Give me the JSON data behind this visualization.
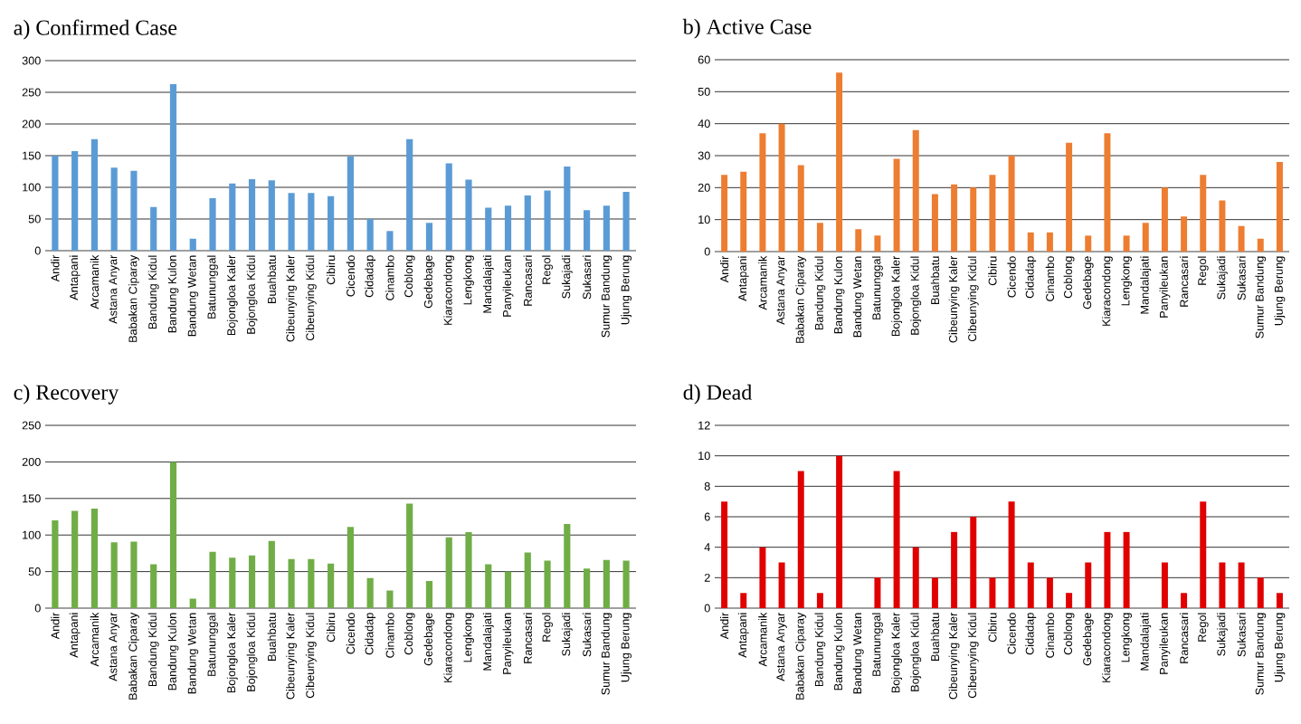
{
  "chart_data": [
    {
      "type": "bar",
      "title": "a) Confirmed Case",
      "categories": [
        "Andir",
        "Antapani",
        "Arcamanik",
        "Astana Anyar",
        "Babakan Ciparay",
        "Bandung Kidul",
        "Bandung Kulon",
        "Bandung Wetan",
        "Batununggal",
        "Bojongloa Kaler",
        "Bojongloa Kidul",
        "Buahbatu",
        "Cibeunying Kaler",
        "Cibeunying Kidul",
        "Cibiru",
        "Cicendo",
        "Cidadap",
        "Cinambo",
        "Coblong",
        "Gedebage",
        "Kiaracondong",
        "Lengkong",
        "Mandalajati",
        "Panyileukan",
        "Rancasari",
        "Regol",
        "Sukajadi",
        "Sukasari",
        "Sumur Bandung",
        "Ujung Berung"
      ],
      "values": [
        150,
        157,
        176,
        131,
        126,
        69,
        263,
        19,
        83,
        106,
        113,
        111,
        91,
        91,
        86,
        149,
        50,
        31,
        176,
        44,
        138,
        112,
        68,
        71,
        87,
        95,
        133,
        64,
        71,
        93
      ],
      "color": "#5b9bd5",
      "ylim": [
        0,
        300
      ],
      "yticks": [
        0,
        50,
        100,
        150,
        200,
        250,
        300
      ],
      "grid": "y"
    },
    {
      "type": "bar",
      "title": "b) Active Case",
      "categories": [
        "Andir",
        "Antapani",
        "Arcamanik",
        "Astana Anyar",
        "Babakan Ciparay",
        "Bandung Kidul",
        "Bandung Kulon",
        "Bandung Wetan",
        "Batununggal",
        "Bojongloa Kaler",
        "Bojongloa Kidul",
        "Buahbatu",
        "Cibeunying Kaler",
        "Cibeunying Kidul",
        "Cibiru",
        "Cicendo",
        "Cidadap",
        "Cinambo",
        "Coblong",
        "Gedebage",
        "Kiaracondong",
        "Lengkong",
        "Mandalajati",
        "Panyileukan",
        "Rancasari",
        "Regol",
        "Sukajadi",
        "Sukasari",
        "Sumur Bandung",
        "Ujung Berung"
      ],
      "values": [
        24,
        25,
        37,
        40,
        27,
        9,
        56,
        7,
        5,
        29,
        38,
        18,
        21,
        20,
        24,
        30,
        6,
        6,
        34,
        5,
        37,
        5,
        9,
        20,
        11,
        24,
        16,
        8,
        4,
        28
      ],
      "color": "#ed7d31",
      "ylim": [
        0,
        60
      ],
      "yticks": [
        0,
        10,
        20,
        30,
        40,
        50,
        60
      ],
      "grid": "y"
    },
    {
      "type": "bar",
      "title": "c) Recovery",
      "categories": [
        "Andir",
        "Antapani",
        "Arcamanik",
        "Astana Anyar",
        "Babakan Ciparay",
        "Bandung Kidul",
        "Bandung Kulon",
        "Bandung Wetan",
        "Batununggal",
        "Bojongloa Kaler",
        "Bojongloa Kidul",
        "Buahbatu",
        "Cibeunying Kaler",
        "Cibeunying Kidul",
        "Cibiru",
        "Cicendo",
        "Cidadap",
        "Cinambo",
        "Coblong",
        "Gedebage",
        "Kiaracondong",
        "Lengkong",
        "Mandalajati",
        "Panyileukan",
        "Rancasari",
        "Regol",
        "Sukajadi",
        "Sukasari",
        "Sumur Bandung",
        "Ujung Berung"
      ],
      "values": [
        120,
        133,
        136,
        90,
        91,
        60,
        200,
        13,
        77,
        69,
        72,
        92,
        67,
        67,
        61,
        111,
        41,
        24,
        143,
        37,
        97,
        104,
        60,
        50,
        76,
        65,
        115,
        54,
        66,
        65
      ],
      "color": "#70ad47",
      "ylim": [
        0,
        250
      ],
      "yticks": [
        0,
        50,
        100,
        150,
        200,
        250
      ],
      "grid": "y"
    },
    {
      "type": "bar",
      "title": "d) Dead",
      "categories": [
        "Andir",
        "Antapani",
        "Arcamanik",
        "Astana Anyar",
        "Babakan Ciparay",
        "Bandung Kidul",
        "Bandung Kulon",
        "Bandung Wetan",
        "Batununggal",
        "Bojongloa Kaler",
        "Bojongloa Kidul",
        "Buahbatu",
        "Cibeunying Kaler",
        "Cibeunying Kidul",
        "Cibiru",
        "Cicendo",
        "Cidadap",
        "Cinambo",
        "Coblong",
        "Gedebage",
        "Kiaracondong",
        "Lengkong",
        "Mandalajati",
        "Panyileukan",
        "Rancasari",
        "Regol",
        "Sukajadi",
        "Sukasari",
        "Sumur Bandung",
        "Ujung Berung"
      ],
      "values": [
        7,
        1,
        4,
        3,
        9,
        1,
        10,
        0,
        2,
        9,
        4,
        2,
        5,
        6,
        2,
        7,
        3,
        2,
        1,
        3,
        5,
        5,
        0,
        3,
        1,
        7,
        3,
        3,
        2,
        1
      ],
      "color": "#e00000",
      "ylim": [
        0,
        12
      ],
      "yticks": [
        0,
        2,
        4,
        6,
        8,
        10,
        12
      ],
      "grid": "y"
    }
  ]
}
